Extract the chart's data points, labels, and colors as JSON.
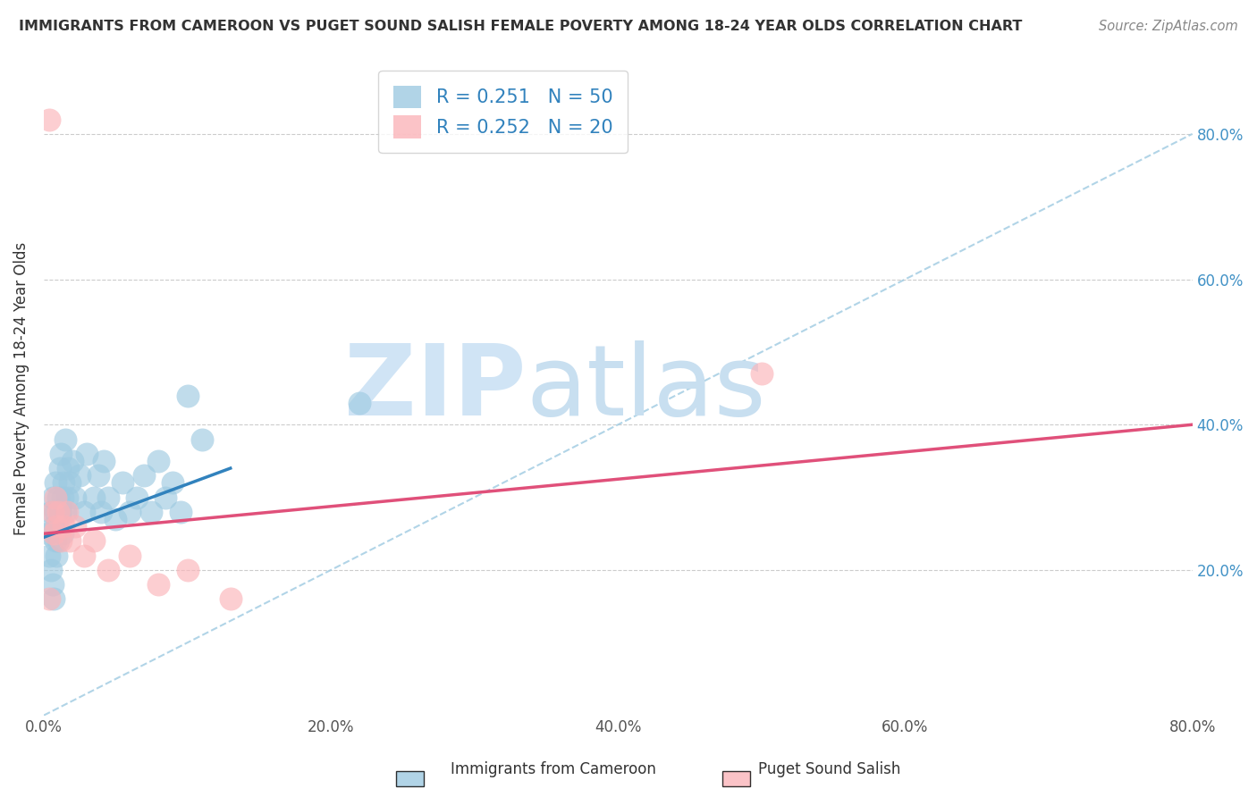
{
  "title": "IMMIGRANTS FROM CAMEROON VS PUGET SOUND SALISH FEMALE POVERTY AMONG 18-24 YEAR OLDS CORRELATION CHART",
  "source": "Source: ZipAtlas.com",
  "ylabel": "Female Poverty Among 18-24 Year Olds",
  "xlim": [
    0.0,
    0.8
  ],
  "ylim": [
    0.0,
    0.9
  ],
  "x_ticks": [
    0.0,
    0.2,
    0.4,
    0.6,
    0.8
  ],
  "x_tick_labels": [
    "0.0%",
    "20.0%",
    "40.0%",
    "60.0%",
    "80.0%"
  ],
  "y_ticks": [
    0.2,
    0.4,
    0.6,
    0.8
  ],
  "y_tick_labels": [
    "20.0%",
    "40.0%",
    "60.0%",
    "80.0%"
  ],
  "blue_color": "#9ecae1",
  "pink_color": "#fbb4b9",
  "blue_line_color": "#3182bd",
  "pink_line_color": "#e0507a",
  "dashed_line_color": "#9ecae1",
  "watermark_zip_color": "#d0e4f5",
  "watermark_atlas_color": "#c8dff0",
  "blue_scatter_x": [
    0.003,
    0.004,
    0.005,
    0.005,
    0.006,
    0.006,
    0.007,
    0.007,
    0.008,
    0.008,
    0.008,
    0.009,
    0.009,
    0.01,
    0.01,
    0.011,
    0.011,
    0.012,
    0.012,
    0.013,
    0.013,
    0.014,
    0.015,
    0.015,
    0.016,
    0.017,
    0.018,
    0.02,
    0.022,
    0.025,
    0.028,
    0.03,
    0.035,
    0.038,
    0.04,
    0.042,
    0.045,
    0.05,
    0.055,
    0.06,
    0.065,
    0.07,
    0.075,
    0.08,
    0.085,
    0.09,
    0.095,
    0.1,
    0.11,
    0.22
  ],
  "blue_scatter_y": [
    0.25,
    0.22,
    0.28,
    0.2,
    0.3,
    0.18,
    0.26,
    0.16,
    0.28,
    0.24,
    0.32,
    0.22,
    0.26,
    0.3,
    0.24,
    0.28,
    0.34,
    0.28,
    0.36,
    0.3,
    0.25,
    0.32,
    0.28,
    0.38,
    0.3,
    0.34,
    0.32,
    0.35,
    0.3,
    0.33,
    0.28,
    0.36,
    0.3,
    0.33,
    0.28,
    0.35,
    0.3,
    0.27,
    0.32,
    0.28,
    0.3,
    0.33,
    0.28,
    0.35,
    0.3,
    0.32,
    0.28,
    0.44,
    0.38,
    0.43
  ],
  "pink_scatter_x": [
    0.004,
    0.006,
    0.007,
    0.008,
    0.009,
    0.01,
    0.012,
    0.014,
    0.016,
    0.018,
    0.022,
    0.028,
    0.035,
    0.045,
    0.06,
    0.08,
    0.1,
    0.13,
    0.5,
    0.004
  ],
  "pink_scatter_y": [
    0.82,
    0.28,
    0.25,
    0.3,
    0.26,
    0.28,
    0.24,
    0.26,
    0.28,
    0.24,
    0.26,
    0.22,
    0.24,
    0.2,
    0.22,
    0.18,
    0.2,
    0.16,
    0.47,
    0.16
  ],
  "blue_line_x0": 0.0,
  "blue_line_y0": 0.245,
  "blue_line_x1": 0.13,
  "blue_line_y1": 0.34,
  "pink_line_x0": 0.0,
  "pink_line_y0": 0.25,
  "pink_line_x1": 0.8,
  "pink_line_y1": 0.4
}
